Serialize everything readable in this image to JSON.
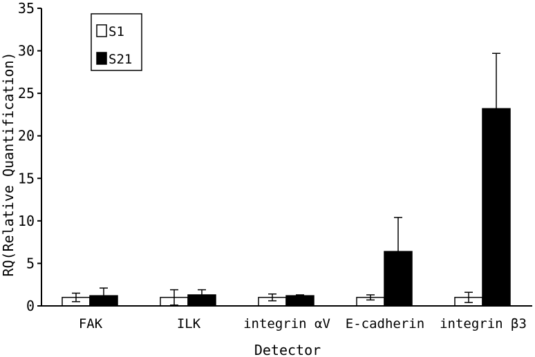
{
  "chart_data": {
    "type": "bar",
    "title": "",
    "xlabel": "Detector",
    "ylabel": "RQ(Relative Quantification)",
    "ylim": [
      0,
      35
    ],
    "yticks": [
      0,
      5,
      10,
      15,
      20,
      25,
      30,
      35
    ],
    "categories": [
      "FAK",
      "ILK",
      "integrin αV",
      "E-cadherin",
      "integrin β3"
    ],
    "series": [
      {
        "name": "S1",
        "color": "#ffffff",
        "values": [
          1.0,
          1.0,
          1.0,
          1.0,
          1.0
        ],
        "errors": [
          0.5,
          0.9,
          0.4,
          0.3,
          0.6
        ]
      },
      {
        "name": "S21",
        "color": "#000000",
        "values": [
          1.2,
          1.3,
          1.2,
          6.4,
          23.2
        ],
        "errors": [
          0.9,
          0.6,
          0.1,
          4.0,
          6.5
        ]
      }
    ],
    "legend": "top-left",
    "grid": false
  }
}
